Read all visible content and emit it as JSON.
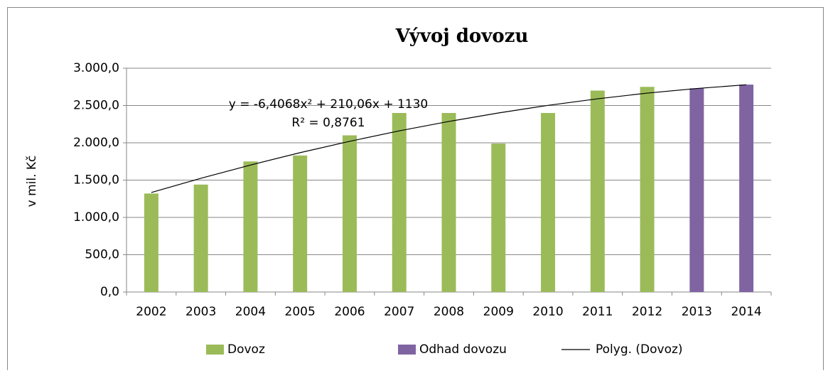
{
  "chart_data": {
    "type": "bar",
    "title": "Vývoj dovozu",
    "y_label": "v mil. Kč",
    "annotations": [
      "y = -6,4068x² + 210,06x + 1130",
      "R² = 0,8761"
    ],
    "categories": [
      "2002",
      "2003",
      "2004",
      "2005",
      "2006",
      "2007",
      "2008",
      "2009",
      "2010",
      "2011",
      "2012",
      "2013",
      "2014"
    ],
    "series": [
      {
        "name": "Dovoz",
        "type": "bar",
        "color": "#9bbb59",
        "values": [
          1320,
          1440,
          1750,
          1830,
          2100,
          2400,
          2400,
          1990,
          2400,
          2700,
          2750,
          null,
          null
        ]
      },
      {
        "name": "Odhad dovozu",
        "type": "bar",
        "color": "#8064a2",
        "values": [
          null,
          null,
          null,
          null,
          null,
          null,
          null,
          null,
          null,
          null,
          null,
          2730,
          2780
        ]
      },
      {
        "name": "Polyg. (Dovoz)",
        "type": "line",
        "color": "#000000",
        "values": [
          1334,
          1524,
          1702,
          1868,
          2020,
          2160,
          2286,
          2400,
          2502,
          2590,
          2666,
          2728,
          2778
        ]
      }
    ],
    "ylim": [
      0,
      3000
    ],
    "yticks": [
      {
        "value": 0,
        "label": "0,0"
      },
      {
        "value": 500,
        "label": "500,0"
      },
      {
        "value": 1000,
        "label": "1.000,0"
      },
      {
        "value": 1500,
        "label": "1.500,0"
      },
      {
        "value": 2000,
        "label": "2.000,0"
      },
      {
        "value": 2500,
        "label": "2.500,0"
      },
      {
        "value": 3000,
        "label": "3.000,0"
      }
    ],
    "grid": true,
    "legend": "bottom"
  }
}
